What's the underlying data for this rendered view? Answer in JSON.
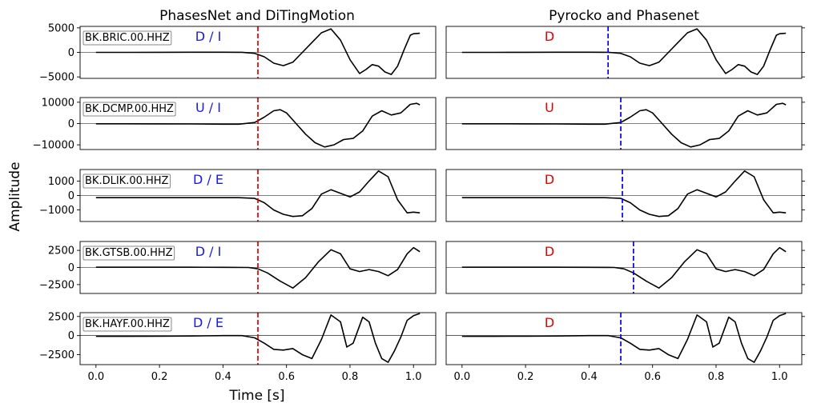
{
  "figure": {
    "titles": [
      "PhasesNet and DiTingMotion",
      "Pyrocko and Phasenet"
    ],
    "xlabel": "Time [s]",
    "ylabel": "Amplitude"
  },
  "chart_data": [
    {
      "type": "line",
      "title": "PhasesNet and DiTingMotion",
      "xlabel": "Time [s]",
      "ylabel": "Amplitude",
      "xlim": [
        -0.05,
        1.07
      ],
      "xticks": [
        0.0,
        0.2,
        0.4,
        0.6,
        0.8,
        1.0
      ],
      "xtick_labels": [
        "0.0",
        "0.2",
        "0.4",
        "0.6",
        "0.8",
        "1.0"
      ],
      "pick_line_color": "#e00000",
      "panels": [
        {
          "station": "BK.BRIC.00.HHZ",
          "polarity": "D / I",
          "pick_time": 0.51,
          "ylim": [
            -5300,
            5300
          ],
          "yticks": [
            5000,
            0,
            -5000
          ],
          "ytick_labels": [
            "5000",
            "0",
            "−5000"
          ],
          "x": [
            0.0,
            0.1,
            0.2,
            0.3,
            0.4,
            0.46,
            0.5,
            0.53,
            0.56,
            0.59,
            0.62,
            0.65,
            0.68,
            0.71,
            0.74,
            0.77,
            0.8,
            0.83,
            0.85,
            0.87,
            0.89,
            0.91,
            0.93,
            0.95,
            0.97,
            0.99,
            1.0,
            1.02
          ],
          "y": [
            0,
            0,
            10,
            30,
            30,
            20,
            -200,
            -900,
            -2200,
            -2700,
            -2000,
            0,
            2000,
            4000,
            4800,
            2500,
            -1500,
            -4300,
            -3500,
            -2500,
            -2800,
            -4000,
            -4500,
            -2800,
            500,
            3500,
            3800,
            3900
          ]
        },
        {
          "station": "BK.DCMP.00.HHZ",
          "polarity": "U / I",
          "pick_time": 0.51,
          "ylim": [
            -12200,
            12200
          ],
          "yticks": [
            10000,
            0,
            -10000
          ],
          "ytick_labels": [
            "10000",
            "0",
            "−10000"
          ],
          "x": [
            0.0,
            0.1,
            0.2,
            0.3,
            0.4,
            0.45,
            0.5,
            0.53,
            0.56,
            0.58,
            0.6,
            0.63,
            0.66,
            0.69,
            0.72,
            0.75,
            0.78,
            0.81,
            0.84,
            0.87,
            0.9,
            0.93,
            0.96,
            0.99,
            1.01,
            1.02
          ],
          "y": [
            -100,
            -100,
            -150,
            -200,
            -300,
            -300,
            500,
            3000,
            6000,
            6500,
            5000,
            0,
            -5000,
            -9000,
            -11000,
            -10000,
            -7500,
            -7000,
            -3500,
            3500,
            6000,
            4000,
            5000,
            9000,
            9500,
            8800
          ]
        },
        {
          "station": "BK.DLIK.00.HHZ",
          "polarity": "D / E",
          "pick_time": 0.51,
          "ylim": [
            -1800,
            1800
          ],
          "yticks": [
            1000,
            0,
            -1000
          ],
          "ytick_labels": [
            "1000",
            "0",
            "−1000"
          ],
          "x": [
            0.0,
            0.1,
            0.2,
            0.3,
            0.4,
            0.45,
            0.5,
            0.53,
            0.56,
            0.59,
            0.62,
            0.65,
            0.68,
            0.71,
            0.74,
            0.77,
            0.8,
            0.83,
            0.86,
            0.89,
            0.92,
            0.95,
            0.98,
            1.0,
            1.02
          ],
          "y": [
            -150,
            -150,
            -150,
            -150,
            -150,
            -150,
            -200,
            -500,
            -1000,
            -1300,
            -1450,
            -1400,
            -900,
            100,
            400,
            150,
            -100,
            250,
            1000,
            1700,
            1300,
            -300,
            -1200,
            -1150,
            -1200
          ]
        },
        {
          "station": "BK.GTSB.00.HHZ",
          "polarity": "D / I",
          "pick_time": 0.51,
          "ylim": [
            -3800,
            3800
          ],
          "yticks": [
            2500,
            0,
            -2500
          ],
          "ytick_labels": [
            "2500",
            "0",
            "−2500"
          ],
          "x": [
            0.0,
            0.1,
            0.2,
            0.3,
            0.4,
            0.48,
            0.51,
            0.54,
            0.58,
            0.62,
            0.66,
            0.7,
            0.74,
            0.77,
            0.8,
            0.83,
            0.86,
            0.89,
            0.92,
            0.95,
            0.98,
            1.0,
            1.02
          ],
          "y": [
            30,
            30,
            30,
            30,
            20,
            0,
            -200,
            -800,
            -2000,
            -3000,
            -1500,
            800,
            2600,
            2000,
            -200,
            -600,
            -300,
            -600,
            -1200,
            -300,
            2000,
            2900,
            2300
          ]
        },
        {
          "station": "BK.HAYF.00.HHZ",
          "polarity": "D / E",
          "pick_time": 0.51,
          "ylim": [
            -3800,
            3000
          ],
          "yticks": [
            2500,
            0,
            -2500
          ],
          "ytick_labels": [
            "2500",
            "0",
            "−2500"
          ],
          "x": [
            0.0,
            0.1,
            0.2,
            0.3,
            0.4,
            0.46,
            0.5,
            0.53,
            0.56,
            0.59,
            0.62,
            0.65,
            0.68,
            0.71,
            0.74,
            0.77,
            0.79,
            0.81,
            0.84,
            0.86,
            0.88,
            0.9,
            0.92,
            0.94,
            0.96,
            0.98,
            1.0,
            1.02
          ],
          "y": [
            -100,
            -100,
            -80,
            -50,
            0,
            0,
            -300,
            -1000,
            -1800,
            -1900,
            -1700,
            -2500,
            -3000,
            -500,
            2700,
            1800,
            -1500,
            -1000,
            2400,
            1800,
            -1000,
            -3000,
            -3500,
            -2000,
            -200,
            2000,
            2600,
            2900
          ]
        }
      ]
    },
    {
      "type": "line",
      "title": "Pyrocko and Phasenet",
      "xlim": [
        -0.05,
        1.07
      ],
      "xticks": [
        0.0,
        0.2,
        0.4,
        0.6,
        0.8,
        1.0
      ],
      "xtick_labels": [
        "0.0",
        "0.2",
        "0.4",
        "0.6",
        "0.8",
        "1.0"
      ],
      "pick_line_color": "#0000ee",
      "panels": [
        {
          "polarity": "D",
          "pick_time": 0.46
        },
        {
          "polarity": "U",
          "pick_time": 0.5
        },
        {
          "polarity": "D",
          "pick_time": 0.505
        },
        {
          "polarity": "D",
          "pick_time": 0.54
        },
        {
          "polarity": "D",
          "pick_time": 0.5
        }
      ]
    }
  ]
}
